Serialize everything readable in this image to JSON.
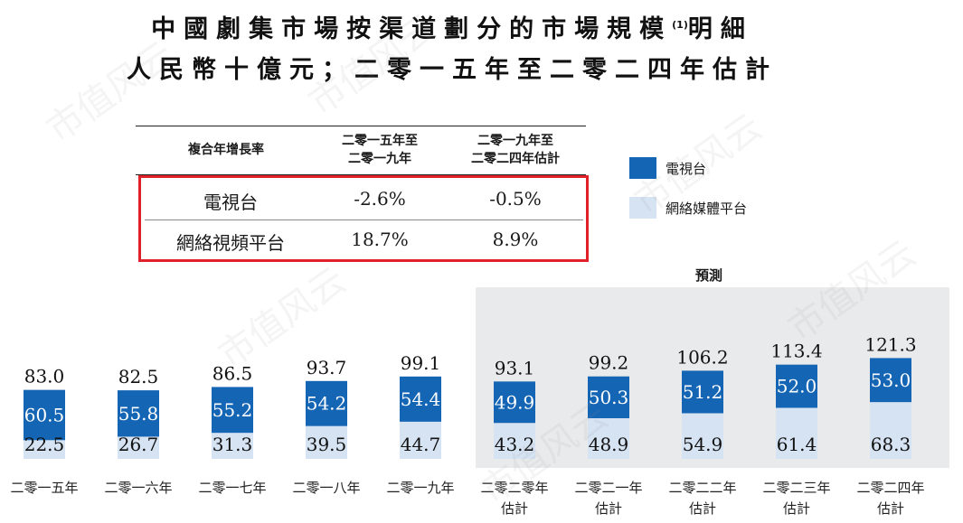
{
  "title_line1": "中國劇集市場按渠道劃分的市場規模",
  "title_sup": "(1)",
  "title_line1_end": "明細",
  "title_line2": "人民幣十億元；二零一五年至二零二四年估計",
  "cagr_table": {
    "header_label": "複合年增長率",
    "col1_line1": "二零一五年至",
    "col1_line2": "二零一九年",
    "col2_line1": "二零一九年至",
    "col2_line2": "二零二四年估計",
    "rows": [
      {
        "label": "電視台",
        "v1": "-2.6%",
        "v2": "-0.5%"
      },
      {
        "label": "網絡視頻平台",
        "v1": "18.7%",
        "v2": "8.9%"
      }
    ]
  },
  "legend": [
    {
      "label": "電視台",
      "color": "#1565b5"
    },
    {
      "label": "網絡媒體平台",
      "color": "#d6e3f3"
    }
  ],
  "forecast_label": "預測",
  "watermark_text": "市值风云",
  "chart_data": {
    "type": "bar",
    "stacked": true,
    "categories": [
      [
        "二零一五年"
      ],
      [
        "二零一六年"
      ],
      [
        "二零一七年"
      ],
      [
        "二零一八年"
      ],
      [
        "二零一九年"
      ],
      [
        "二零二零年",
        "估計"
      ],
      [
        "二零二一年",
        "估計"
      ],
      [
        "二零二二年",
        "估計"
      ],
      [
        "二零二三年",
        "估計"
      ],
      [
        "二零二四年",
        "估計"
      ]
    ],
    "series": [
      {
        "name": "網絡媒體平台",
        "color": "#d6e3f3",
        "values": [
          22.5,
          26.7,
          31.3,
          39.5,
          44.7,
          43.2,
          48.9,
          54.9,
          61.4,
          68.3
        ]
      },
      {
        "name": "電視台",
        "color": "#1565b5",
        "values": [
          60.5,
          55.8,
          55.2,
          54.2,
          54.4,
          49.9,
          50.3,
          51.2,
          52.0,
          53.0
        ]
      }
    ],
    "totals": [
      83.0,
      82.5,
      86.5,
      93.7,
      99.1,
      93.1,
      99.2,
      106.2,
      113.4,
      121.3
    ],
    "total_labels": [
      "83.0",
      "82.5",
      "86.5",
      "93.7",
      "99.1",
      "93.1",
      "99.2",
      "106.2",
      "113.4",
      "121.3"
    ],
    "series_labels": {
      "網絡媒體平台": [
        "22.5",
        "26.7",
        "31.3",
        "39.5",
        "44.7",
        "43.2",
        "48.9",
        "54.9",
        "61.4",
        "68.3"
      ],
      "電視台": [
        "60.5",
        "55.8",
        "55.2",
        "54.2",
        "54.4",
        "49.9",
        "50.3",
        "51.2",
        "52.0",
        "53.0"
      ]
    },
    "forecast_start_index": 5,
    "unit": "人民幣十億元"
  }
}
